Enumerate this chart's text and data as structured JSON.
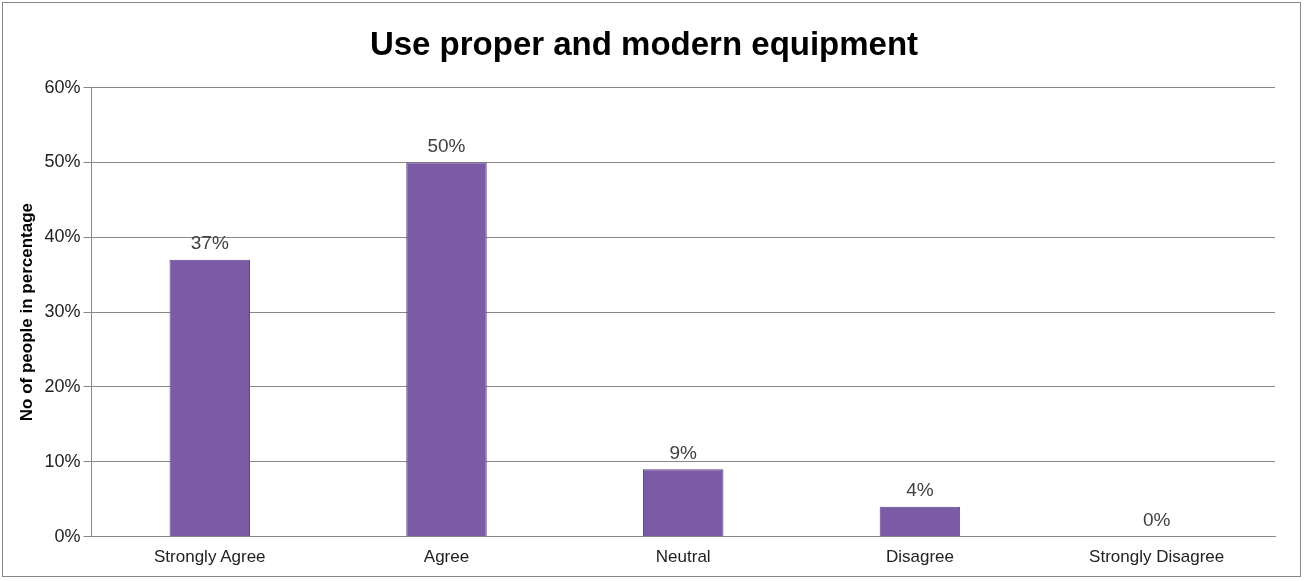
{
  "chart_data": {
    "type": "bar",
    "title": "Use proper and modern equipment",
    "ylabel": "No of people in percentage",
    "categories": [
      "Strongly Agree",
      "Agree",
      "Neutral",
      "Disagree",
      "Strongly Disagree"
    ],
    "values": [
      37,
      50,
      9,
      4,
      0
    ],
    "value_labels": [
      "37%",
      "50%",
      "9%",
      "4%",
      "0%"
    ],
    "color": "#7b5aa6",
    "ylim": [
      0,
      60
    ],
    "yticks": [
      {
        "value": 0,
        "label": "0%"
      },
      {
        "value": 10,
        "label": "10%"
      },
      {
        "value": 20,
        "label": "20%"
      },
      {
        "value": 30,
        "label": "30%"
      },
      {
        "value": 40,
        "label": "40%"
      },
      {
        "value": 50,
        "label": "50%"
      },
      {
        "value": 60,
        "label": "60%"
      }
    ],
    "grid": "y",
    "legend": false
  }
}
